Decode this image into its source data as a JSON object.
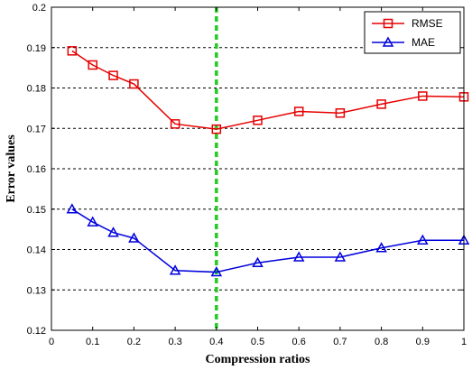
{
  "chart_data": {
    "type": "line",
    "xlabel": "Compression ratios",
    "ylabel": "Error values",
    "xlim": [
      0,
      1
    ],
    "ylim": [
      0.12,
      0.2
    ],
    "xticks": [
      "0",
      "0.1",
      "0.2",
      "0.3",
      "0.4",
      "0.5",
      "0.6",
      "0.7",
      "0.8",
      "0.9",
      "1"
    ],
    "yticks": [
      "0.12",
      "0.13",
      "0.14",
      "0.15",
      "0.16",
      "0.17",
      "0.18",
      "0.19",
      "0.2"
    ],
    "x": [
      0.05,
      0.1,
      0.15,
      0.2,
      0.3,
      0.4,
      0.5,
      0.6,
      0.7,
      0.8,
      0.9,
      1.0
    ],
    "series": [
      {
        "name": "RMSE",
        "color": "#e60000",
        "marker": "square",
        "values": [
          0.1892,
          0.1857,
          0.1831,
          0.181,
          0.1711,
          0.1698,
          0.172,
          0.1742,
          0.1738,
          0.176,
          0.178,
          0.1778
        ]
      },
      {
        "name": "MAE",
        "color": "#0000dd",
        "marker": "triangle",
        "values": [
          0.15,
          0.1468,
          0.1442,
          0.1428,
          0.1348,
          0.1344,
          0.1367,
          0.1381,
          0.1381,
          0.1404,
          0.1423,
          0.1423
        ]
      }
    ],
    "reference_line": {
      "x": 0.4,
      "color": "#22cc22",
      "style": "dashed"
    },
    "grid": "horizontal dashed",
    "legend_position": "top-right"
  }
}
